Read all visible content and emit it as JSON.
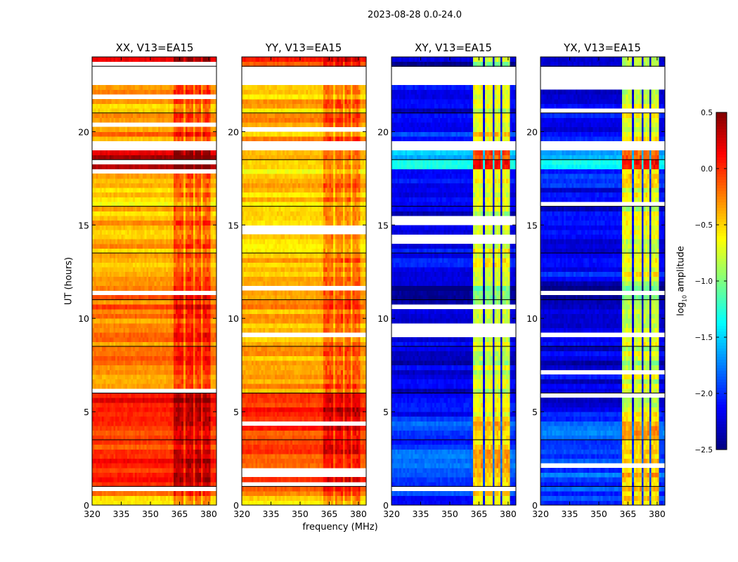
{
  "suptitle": "2023-08-28 0.0-24.0",
  "chart_data": {
    "type": "heatmap",
    "xlabel": "frequency (MHz)",
    "ylabel": "UT (hours)",
    "xlim": [
      320,
      384
    ],
    "ylim": [
      0,
      24
    ],
    "xticks": [
      "320",
      "335",
      "350",
      "365",
      "380"
    ],
    "xtick_values": [
      320,
      335,
      350,
      365,
      380
    ],
    "yticks": [
      "0",
      "5",
      "10",
      "15",
      "20"
    ],
    "ytick_values": [
      0,
      5,
      10,
      15,
      20
    ],
    "row_hours": 0.5,
    "freq_bin_mhz": 1,
    "bright_bands_mhz": [
      [
        362,
        367
      ],
      [
        368,
        372
      ],
      [
        373,
        376
      ],
      [
        377,
        381
      ]
    ],
    "colormap": "jet",
    "colorbar": {
      "label_main": "log",
      "label_sub": "10",
      "label_rest": " amplitude",
      "vmin": -2.5,
      "vmax": 0.5,
      "ticks": [
        "0.5",
        "0.0",
        "−0.5",
        "−1.0",
        "−1.5",
        "−2.0",
        "−2.5"
      ],
      "tick_values": [
        0.5,
        0,
        -0.5,
        -1,
        -1.5,
        -2,
        -2.5
      ]
    },
    "panels": [
      {
        "title": "XX, V13=EA15",
        "band_offset": 0.3,
        "base": [
          -0.4,
          -0.1,
          0.0,
          0.0,
          0.0,
          0.0,
          0.0,
          0.0,
          0.0,
          -0.05,
          0.05,
          0.05,
          -0.3,
          -0.3,
          -0.3,
          -0.3,
          -0.3,
          -0.3,
          -0.3,
          -0.3,
          -0.2,
          -0.2,
          -0.2,
          -0.2,
          -0.4,
          -0.4,
          -0.35,
          -0.4,
          -0.4,
          -0.35,
          -0.3,
          -0.4,
          -0.5,
          -0.5,
          -0.5,
          -0.5,
          0.35,
          0.35,
          null,
          -0.3,
          -0.3,
          -0.3,
          -0.4,
          -0.4,
          -0.4,
          null,
          null,
          0.0
        ]
      },
      {
        "title": "YY, V13=EA15",
        "band_offset": 0.25,
        "base": [
          -0.45,
          -0.15,
          -0.05,
          -0.05,
          -0.05,
          -0.05,
          -0.05,
          -0.05,
          -0.05,
          -0.1,
          0.0,
          0.0,
          -0.35,
          -0.35,
          -0.35,
          -0.35,
          -0.35,
          -0.35,
          -0.35,
          -0.35,
          -0.35,
          -0.35,
          -0.35,
          -0.35,
          -0.45,
          -0.45,
          -0.45,
          -0.45,
          -0.45,
          -0.45,
          -0.4,
          -0.45,
          -0.5,
          -0.5,
          -0.5,
          -0.5,
          -0.45,
          -0.45,
          null,
          -0.4,
          -0.35,
          -0.4,
          -0.45,
          -0.45,
          -0.45,
          null,
          null,
          -0.1
        ]
      },
      {
        "title": "XY, V13=EA15",
        "band_offset": 1.45,
        "base": [
          -2.0,
          -1.9,
          -1.9,
          -1.85,
          -1.9,
          -1.9,
          -1.95,
          -1.9,
          -1.9,
          -2.1,
          -2.2,
          -2.2,
          -2.2,
          -2.2,
          -2.2,
          -2.25,
          -2.2,
          -2.2,
          -2.2,
          -2.2,
          -2.3,
          -2.35,
          -2.35,
          -2.35,
          -2.1,
          -2.1,
          -2.15,
          -2.1,
          -2.2,
          -2.2,
          -2.1,
          -2.2,
          -2.2,
          -2.2,
          -2.1,
          -2.0,
          -1.4,
          -1.5,
          null,
          -2.0,
          -2.1,
          -2.1,
          -2.2,
          -2.2,
          -2.2,
          null,
          null,
          -2.3
        ]
      },
      {
        "title": "YX, V13=EA15",
        "band_offset": 1.45,
        "base": [
          -2.0,
          -1.9,
          -1.9,
          -1.85,
          -1.9,
          -1.9,
          -1.95,
          -1.9,
          -1.9,
          -2.1,
          -2.2,
          -2.2,
          -2.2,
          -2.2,
          -2.2,
          -2.25,
          -2.2,
          -2.2,
          -2.2,
          -2.2,
          -2.3,
          -2.35,
          -2.35,
          -2.35,
          -2.1,
          -2.1,
          -2.15,
          -2.1,
          -2.2,
          -2.2,
          -2.1,
          -2.2,
          -2.2,
          -2.2,
          -2.1,
          -2.0,
          -1.4,
          -1.5,
          null,
          -2.0,
          -2.1,
          -2.1,
          -2.2,
          -2.2,
          -2.2,
          null,
          null,
          -2.3
        ]
      }
    ]
  }
}
